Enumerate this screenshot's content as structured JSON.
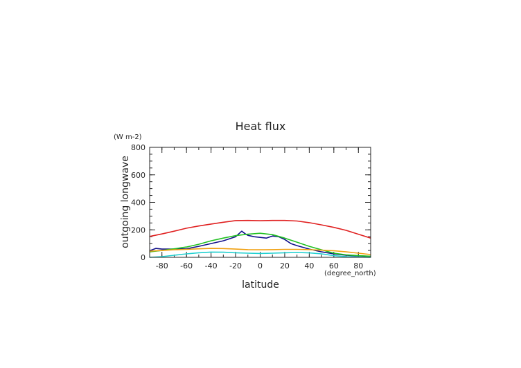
{
  "chart_data": {
    "type": "line",
    "title": "Heat flux",
    "xlabel": "latitude",
    "ylabel": "outgoing longwave",
    "x_units": "(degree_north)",
    "y_units": "(W m-2)",
    "xlim": [
      -90,
      90
    ],
    "ylim": [
      0,
      800
    ],
    "x_ticks": [
      -80,
      -60,
      -40,
      -20,
      0,
      20,
      40,
      60,
      80
    ],
    "y_ticks": [
      0,
      200,
      400,
      600,
      800
    ],
    "grid": false,
    "series": [
      {
        "color": "#e02020",
        "x": [
          -90,
          -80,
          -70,
          -60,
          -50,
          -40,
          -30,
          -20,
          -10,
          0,
          10,
          20,
          30,
          40,
          50,
          60,
          70,
          80,
          90
        ],
        "values": [
          152,
          170,
          190,
          212,
          228,
          242,
          255,
          267,
          268,
          266,
          268,
          268,
          264,
          252,
          236,
          218,
          196,
          168,
          140
        ]
      },
      {
        "color": "#10108a",
        "x": [
          -90,
          -85,
          -80,
          -70,
          -60,
          -50,
          -40,
          -30,
          -20,
          -15,
          -12,
          -10,
          -5,
          0,
          5,
          10,
          15,
          20,
          25,
          30,
          40,
          50,
          60,
          70,
          80,
          90
        ],
        "values": [
          48,
          65,
          60,
          60,
          62,
          80,
          100,
          120,
          150,
          190,
          170,
          160,
          150,
          145,
          140,
          155,
          150,
          130,
          100,
          85,
          60,
          40,
          25,
          15,
          10,
          8
        ]
      },
      {
        "color": "#20c020",
        "x": [
          -90,
          -80,
          -70,
          -60,
          -50,
          -40,
          -30,
          -20,
          -10,
          0,
          10,
          20,
          30,
          40,
          50,
          60,
          70,
          80,
          90
        ],
        "values": [
          40,
          50,
          62,
          75,
          95,
          120,
          140,
          158,
          168,
          175,
          165,
          140,
          110,
          80,
          55,
          30,
          18,
          12,
          8
        ]
      },
      {
        "color": "#f0a010",
        "x": [
          -90,
          -80,
          -70,
          -60,
          -50,
          -40,
          -30,
          -20,
          -10,
          0,
          10,
          20,
          30,
          40,
          50,
          60,
          70,
          80,
          90
        ],
        "values": [
          45,
          50,
          55,
          58,
          62,
          65,
          64,
          60,
          56,
          55,
          56,
          58,
          58,
          56,
          52,
          48,
          40,
          30,
          20
        ]
      },
      {
        "color": "#20d0d0",
        "x": [
          -90,
          -80,
          -70,
          -60,
          -50,
          -40,
          -30,
          -20,
          -10,
          0,
          10,
          20,
          30,
          40,
          50,
          60,
          70,
          80,
          90
        ],
        "values": [
          0,
          5,
          15,
          25,
          33,
          38,
          37,
          33,
          30,
          28,
          30,
          33,
          35,
          32,
          25,
          12,
          5,
          2,
          0
        ]
      }
    ]
  }
}
